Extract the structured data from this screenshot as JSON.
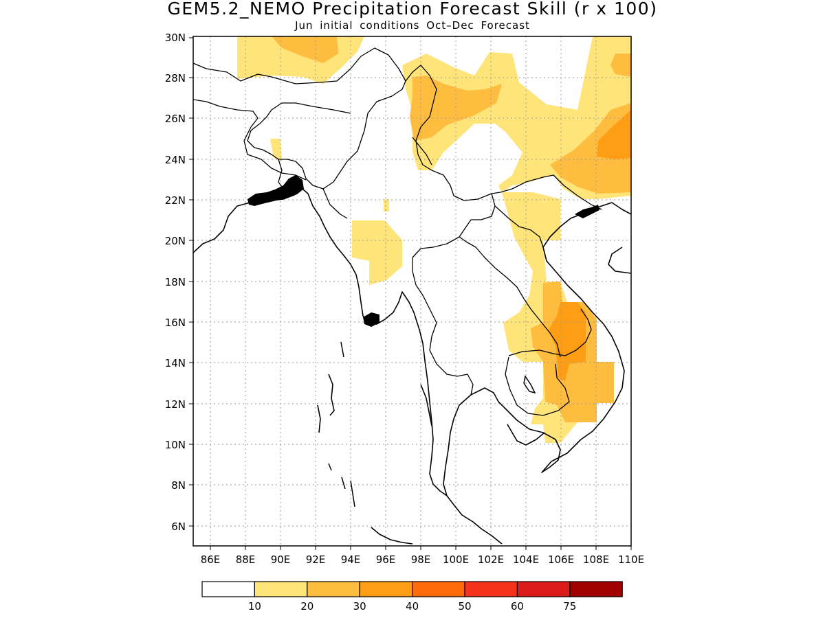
{
  "title": "GEM5.2_NEMO Precipitation Forecast Skill (r x 100)",
  "subtitle": "Jun initial conditions  Oct–Dec Forecast",
  "map": {
    "lon_labels": [
      "86E",
      "88E",
      "90E",
      "92E",
      "94E",
      "96E",
      "98E",
      "100E",
      "102E",
      "104E",
      "106E",
      "108E",
      "110E"
    ],
    "lat_labels": [
      "30N",
      "28N",
      "26N",
      "24N",
      "22N",
      "20N",
      "18N",
      "16N",
      "14N",
      "12N",
      "10N",
      "8N",
      "6N"
    ],
    "lon_range": [
      85,
      110
    ],
    "lat_range": [
      5,
      30
    ],
    "grid": "dotted"
  },
  "colorbar": {
    "colors": [
      "#ffffff",
      "#ffe47a",
      "#ffbd40",
      "#ff9e14",
      "#ff6a0a",
      "#f5331a",
      "#db1a1a",
      "#a00000"
    ],
    "labels": [
      "10",
      "20",
      "30",
      "40",
      "50",
      "60",
      "75"
    ]
  }
}
